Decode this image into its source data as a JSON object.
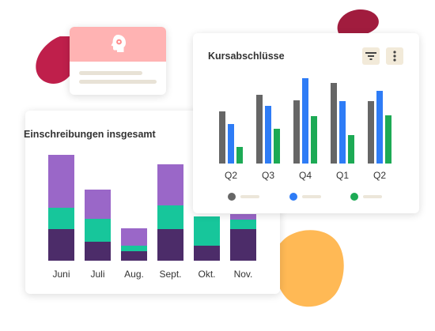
{
  "enrollments": {
    "title": "Einschreibungen insgesamt",
    "colors": {
      "dark": "#4c2c69",
      "mid": "#17c69b",
      "top": "#9a67c8"
    }
  },
  "course_completions": {
    "title": "Kursabschlüsse",
    "colors": {
      "gray": "#666666",
      "blue": "#2e7cf6",
      "green": "#1daa55"
    },
    "icons": {
      "filter": "filter-icon",
      "more": "more-vertical-icon"
    }
  },
  "chart_data": [
    {
      "type": "bar",
      "stacked": true,
      "title": "Einschreibungen insgesamt",
      "categories": [
        "Juni",
        "Juli",
        "Aug.",
        "Sept.",
        "Okt.",
        "Nov."
      ],
      "series": [
        {
          "values": [
            40,
            24,
            12,
            40,
            19,
            40
          ]
        },
        {
          "values": [
            27,
            29,
            7,
            30,
            37,
            12
          ]
        },
        {
          "values": [
            67,
            37,
            22,
            52,
            0,
            7
          ]
        }
      ]
    },
    {
      "type": "bar",
      "title": "Kursabschlüsse",
      "categories": [
        "Q2",
        "Q3",
        "Q4",
        "Q1",
        "Q2"
      ],
      "series": [
        {
          "values": [
            66,
            87,
            80,
            102,
            79
          ]
        },
        {
          "values": [
            50,
            73,
            108,
            79,
            92
          ]
        },
        {
          "values": [
            21,
            44,
            60,
            36,
            61
          ]
        }
      ]
    }
  ]
}
